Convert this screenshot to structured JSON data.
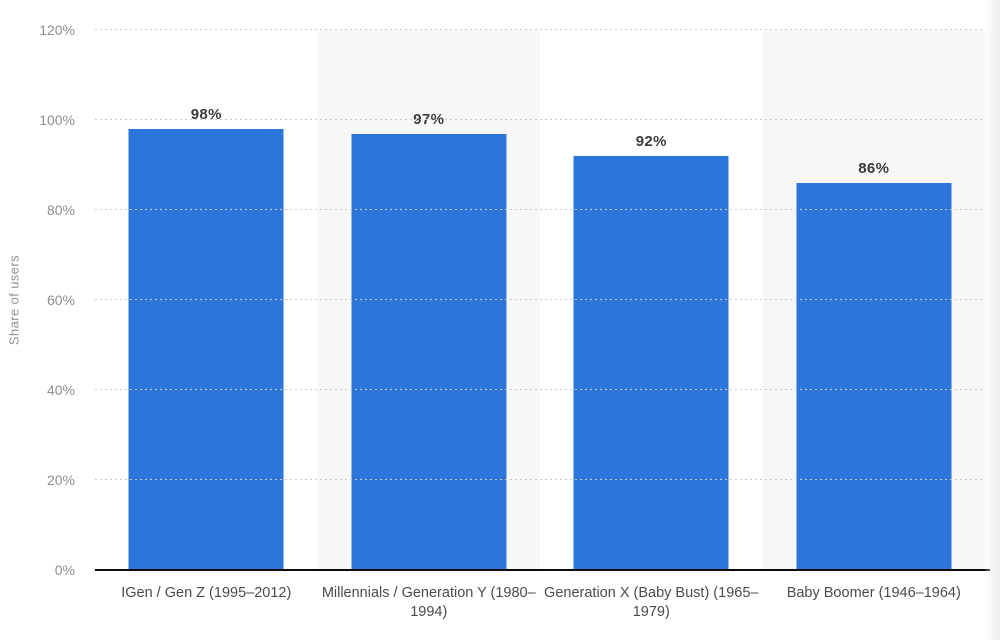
{
  "chart_data": {
    "type": "bar",
    "title": "",
    "ylabel": "Share of users",
    "xlabel": "",
    "categories": [
      "IGen / Gen Z (1995–2012)",
      "Millennials / Generation Y (1980–1994)",
      "Generation X (Baby Bust) (1965–1979)",
      "Baby Boomer (1946–1964)"
    ],
    "values": [
      98,
      97,
      92,
      86
    ],
    "value_labels": [
      "98%",
      "97%",
      "92%",
      "86%"
    ],
    "ylim": [
      0,
      120
    ],
    "ytick_values": [
      0,
      20,
      40,
      60,
      80,
      100,
      120
    ],
    "ytick_labels": [
      "0%",
      "20%",
      "40%",
      "60%",
      "80%",
      "100%",
      "120%"
    ],
    "grid": "horizontal dotted",
    "legend": "none",
    "bar_color": "#2B75DB",
    "band_color": "#f7f7f8",
    "gridline_color": "#c9c9c9",
    "axis_line_color": "#0a0a0a",
    "tick_text_color": "#8e8e8e",
    "value_text_color": "#3c3c3c",
    "category_text_color": "#4b4b4b"
  }
}
